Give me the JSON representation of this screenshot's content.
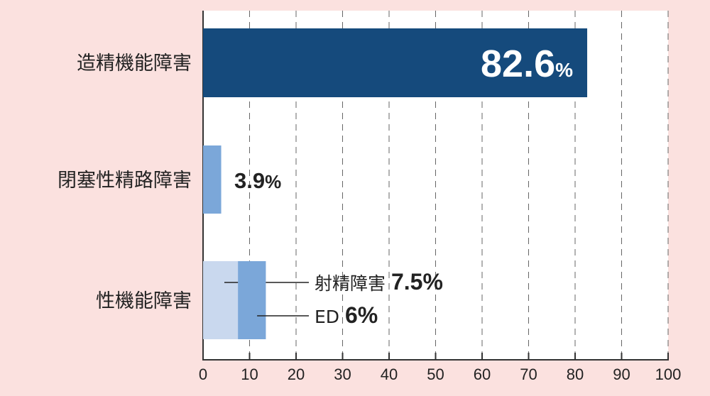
{
  "chart_data": {
    "type": "bar",
    "orientation": "horizontal",
    "categories": [
      "造精機能障害",
      "閉塞性精路障害",
      "性機能障害"
    ],
    "series": [
      {
        "category": "造精機能障害",
        "value": 82.6,
        "label": "82.6",
        "unit": "%",
        "color": "#154a7c"
      },
      {
        "category": "閉塞性精路障害",
        "value": 3.9,
        "label": "3.9",
        "unit": "%",
        "color": "#7ba7d9"
      }
    ],
    "stacked": {
      "category": "性機能障害",
      "parts": [
        {
          "name": "射精障害",
          "value": 7.5,
          "label": "7.5",
          "unit": "%",
          "color": "#c9d8ee"
        },
        {
          "name": "ED",
          "value": 6,
          "label": "6",
          "unit": "%",
          "color": "#7ba7d9"
        }
      ]
    },
    "xlim": [
      0,
      100
    ],
    "xticks": [
      "0",
      "10",
      "20",
      "30",
      "40",
      "50",
      "60",
      "70",
      "80",
      "90",
      "100"
    ],
    "grid": "vertical dashed",
    "background": "#fbe1df",
    "plot_background": "#ffffff"
  }
}
